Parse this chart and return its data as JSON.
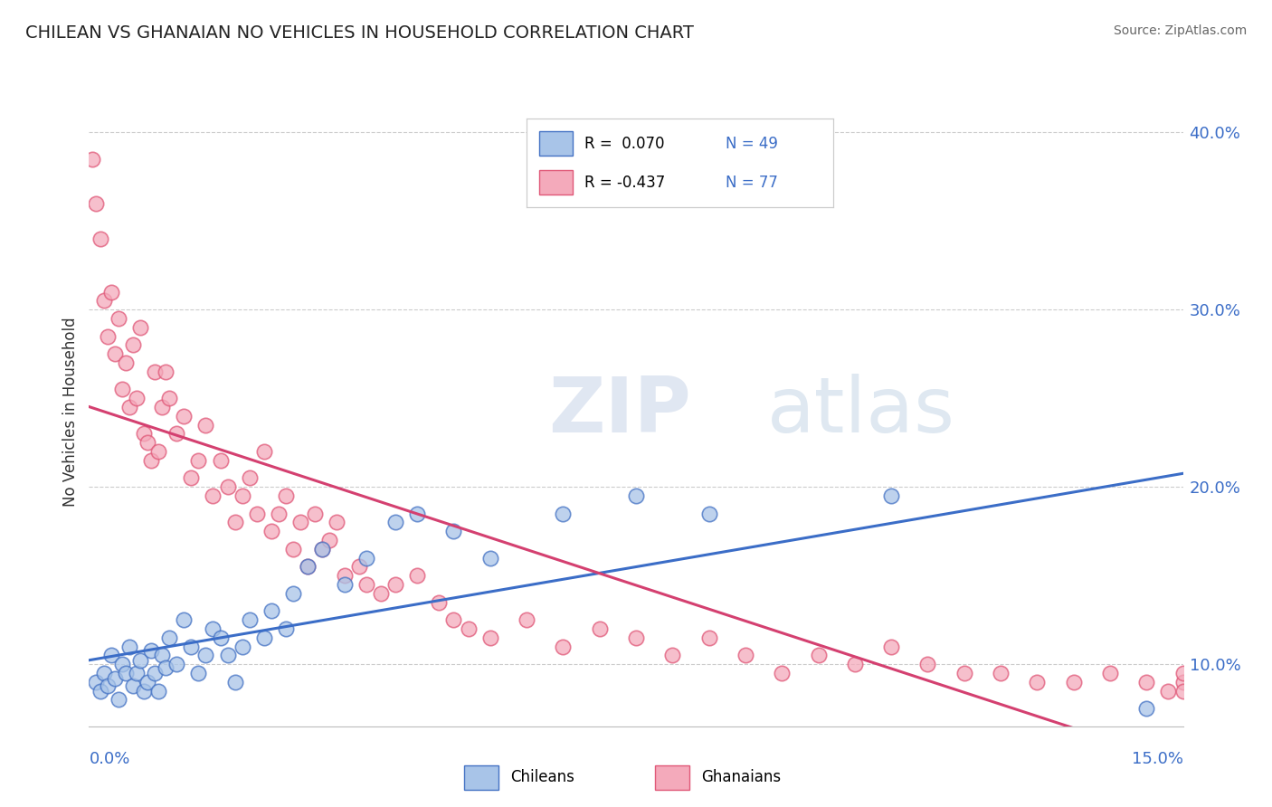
{
  "title": "CHILEAN VS GHANAIAN NO VEHICLES IN HOUSEHOLD CORRELATION CHART",
  "source": "Source: ZipAtlas.com",
  "ylabel": "No Vehicles in Household",
  "x_min": 0.0,
  "x_max": 15.0,
  "y_min": 6.5,
  "y_max": 42.0,
  "blue_R": 0.07,
  "blue_N": 49,
  "pink_R": -0.437,
  "pink_N": 77,
  "blue_color": "#A8C4E8",
  "pink_color": "#F4AABB",
  "blue_line_color": "#3B6DC7",
  "pink_line_color": "#D44070",
  "blue_edge_color": "#4472C4",
  "pink_edge_color": "#E05878",
  "legend_label_blue": "Chileans",
  "legend_label_pink": "Ghanaians",
  "watermark_zip": "ZIP",
  "watermark_atlas": "atlas",
  "right_yticks": [
    10.0,
    20.0,
    30.0,
    40.0
  ],
  "blue_points_x": [
    0.1,
    0.15,
    0.2,
    0.25,
    0.3,
    0.35,
    0.4,
    0.45,
    0.5,
    0.55,
    0.6,
    0.65,
    0.7,
    0.75,
    0.8,
    0.85,
    0.9,
    0.95,
    1.0,
    1.05,
    1.1,
    1.2,
    1.3,
    1.4,
    1.5,
    1.6,
    1.7,
    1.8,
    1.9,
    2.0,
    2.1,
    2.2,
    2.4,
    2.5,
    2.7,
    2.8,
    3.0,
    3.2,
    3.5,
    3.8,
    4.2,
    4.5,
    5.0,
    5.5,
    6.5,
    7.5,
    8.5,
    11.0,
    14.5
  ],
  "blue_points_y": [
    9.0,
    8.5,
    9.5,
    8.8,
    10.5,
    9.2,
    8.0,
    10.0,
    9.5,
    11.0,
    8.8,
    9.5,
    10.2,
    8.5,
    9.0,
    10.8,
    9.5,
    8.5,
    10.5,
    9.8,
    11.5,
    10.0,
    12.5,
    11.0,
    9.5,
    10.5,
    12.0,
    11.5,
    10.5,
    9.0,
    11.0,
    12.5,
    11.5,
    13.0,
    12.0,
    14.0,
    15.5,
    16.5,
    14.5,
    16.0,
    18.0,
    18.5,
    17.5,
    16.0,
    18.5,
    19.5,
    18.5,
    19.5,
    7.5
  ],
  "pink_points_x": [
    0.05,
    0.1,
    0.15,
    0.2,
    0.25,
    0.3,
    0.35,
    0.4,
    0.45,
    0.5,
    0.55,
    0.6,
    0.65,
    0.7,
    0.75,
    0.8,
    0.85,
    0.9,
    0.95,
    1.0,
    1.05,
    1.1,
    1.2,
    1.3,
    1.4,
    1.5,
    1.6,
    1.7,
    1.8,
    1.9,
    2.0,
    2.1,
    2.2,
    2.3,
    2.4,
    2.5,
    2.6,
    2.7,
    2.8,
    2.9,
    3.0,
    3.1,
    3.2,
    3.3,
    3.4,
    3.5,
    3.7,
    3.8,
    4.0,
    4.2,
    4.5,
    4.8,
    5.0,
    5.2,
    5.5,
    6.0,
    6.5,
    7.0,
    7.5,
    8.0,
    8.5,
    9.0,
    9.5,
    10.0,
    10.5,
    11.0,
    11.5,
    12.0,
    12.5,
    13.0,
    13.5,
    14.0,
    14.5,
    14.8,
    15.0,
    15.0,
    15.0
  ],
  "pink_points_y": [
    38.5,
    36.0,
    34.0,
    30.5,
    28.5,
    31.0,
    27.5,
    29.5,
    25.5,
    27.0,
    24.5,
    28.0,
    25.0,
    29.0,
    23.0,
    22.5,
    21.5,
    26.5,
    22.0,
    24.5,
    26.5,
    25.0,
    23.0,
    24.0,
    20.5,
    21.5,
    23.5,
    19.5,
    21.5,
    20.0,
    18.0,
    19.5,
    20.5,
    18.5,
    22.0,
    17.5,
    18.5,
    19.5,
    16.5,
    18.0,
    15.5,
    18.5,
    16.5,
    17.0,
    18.0,
    15.0,
    15.5,
    14.5,
    14.0,
    14.5,
    15.0,
    13.5,
    12.5,
    12.0,
    11.5,
    12.5,
    11.0,
    12.0,
    11.5,
    10.5,
    11.5,
    10.5,
    9.5,
    10.5,
    10.0,
    11.0,
    10.0,
    9.5,
    9.5,
    9.0,
    9.0,
    9.5,
    9.0,
    8.5,
    9.0,
    8.5,
    9.5
  ]
}
